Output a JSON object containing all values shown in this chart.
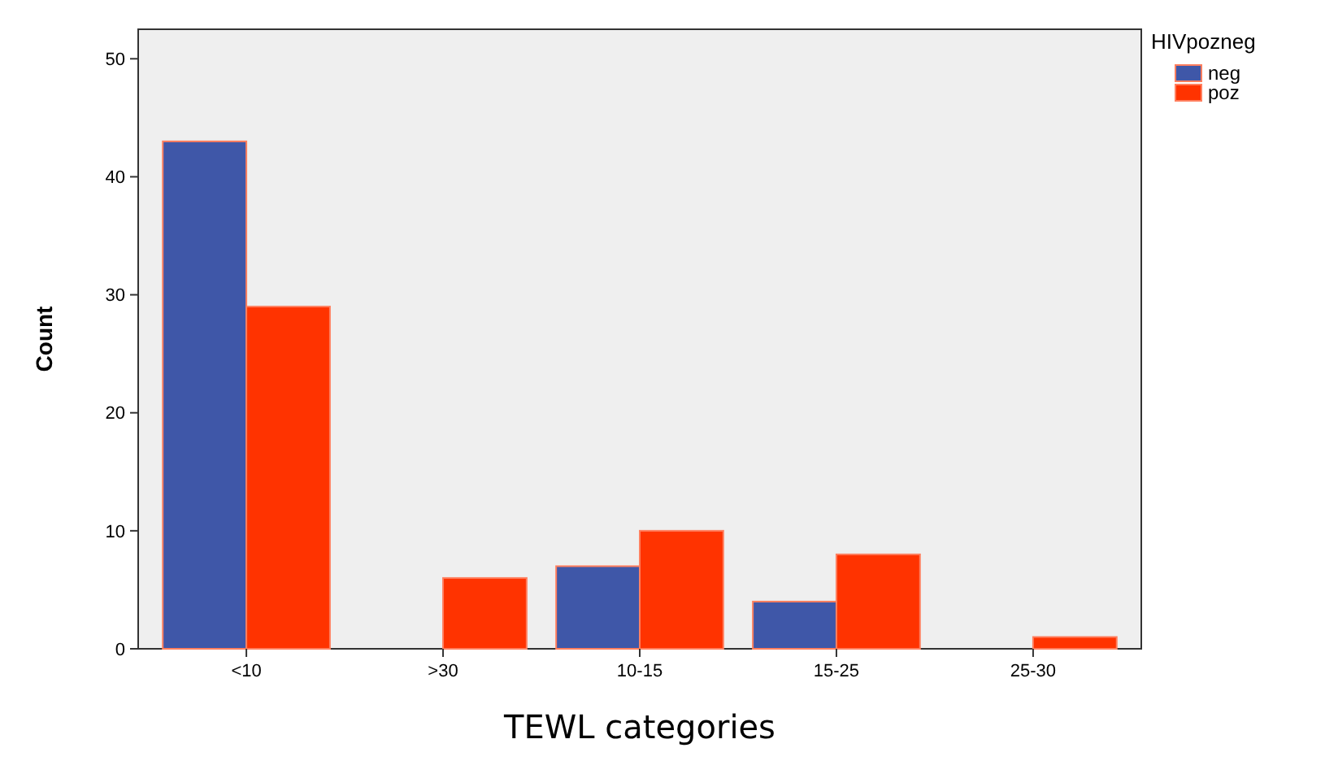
{
  "chart_data": {
    "type": "bar",
    "xlabel": "TEWL categories",
    "ylabel": "Count",
    "legend_title": "HIVpozneg",
    "legend": "top right",
    "categories": [
      "<10",
      ">30",
      "10-15",
      "15-25",
      "25-30"
    ],
    "series": [
      {
        "name": "neg",
        "color": "#3f57a8",
        "values": [
          43,
          null,
          7,
          4,
          null
        ]
      },
      {
        "name": "poz",
        "color": "#ff3300",
        "values": [
          29,
          6,
          10,
          8,
          1
        ]
      }
    ],
    "ylim": [
      0,
      52.5
    ],
    "yticks": [
      0,
      10,
      20,
      30,
      40,
      50
    ],
    "grid": false
  }
}
